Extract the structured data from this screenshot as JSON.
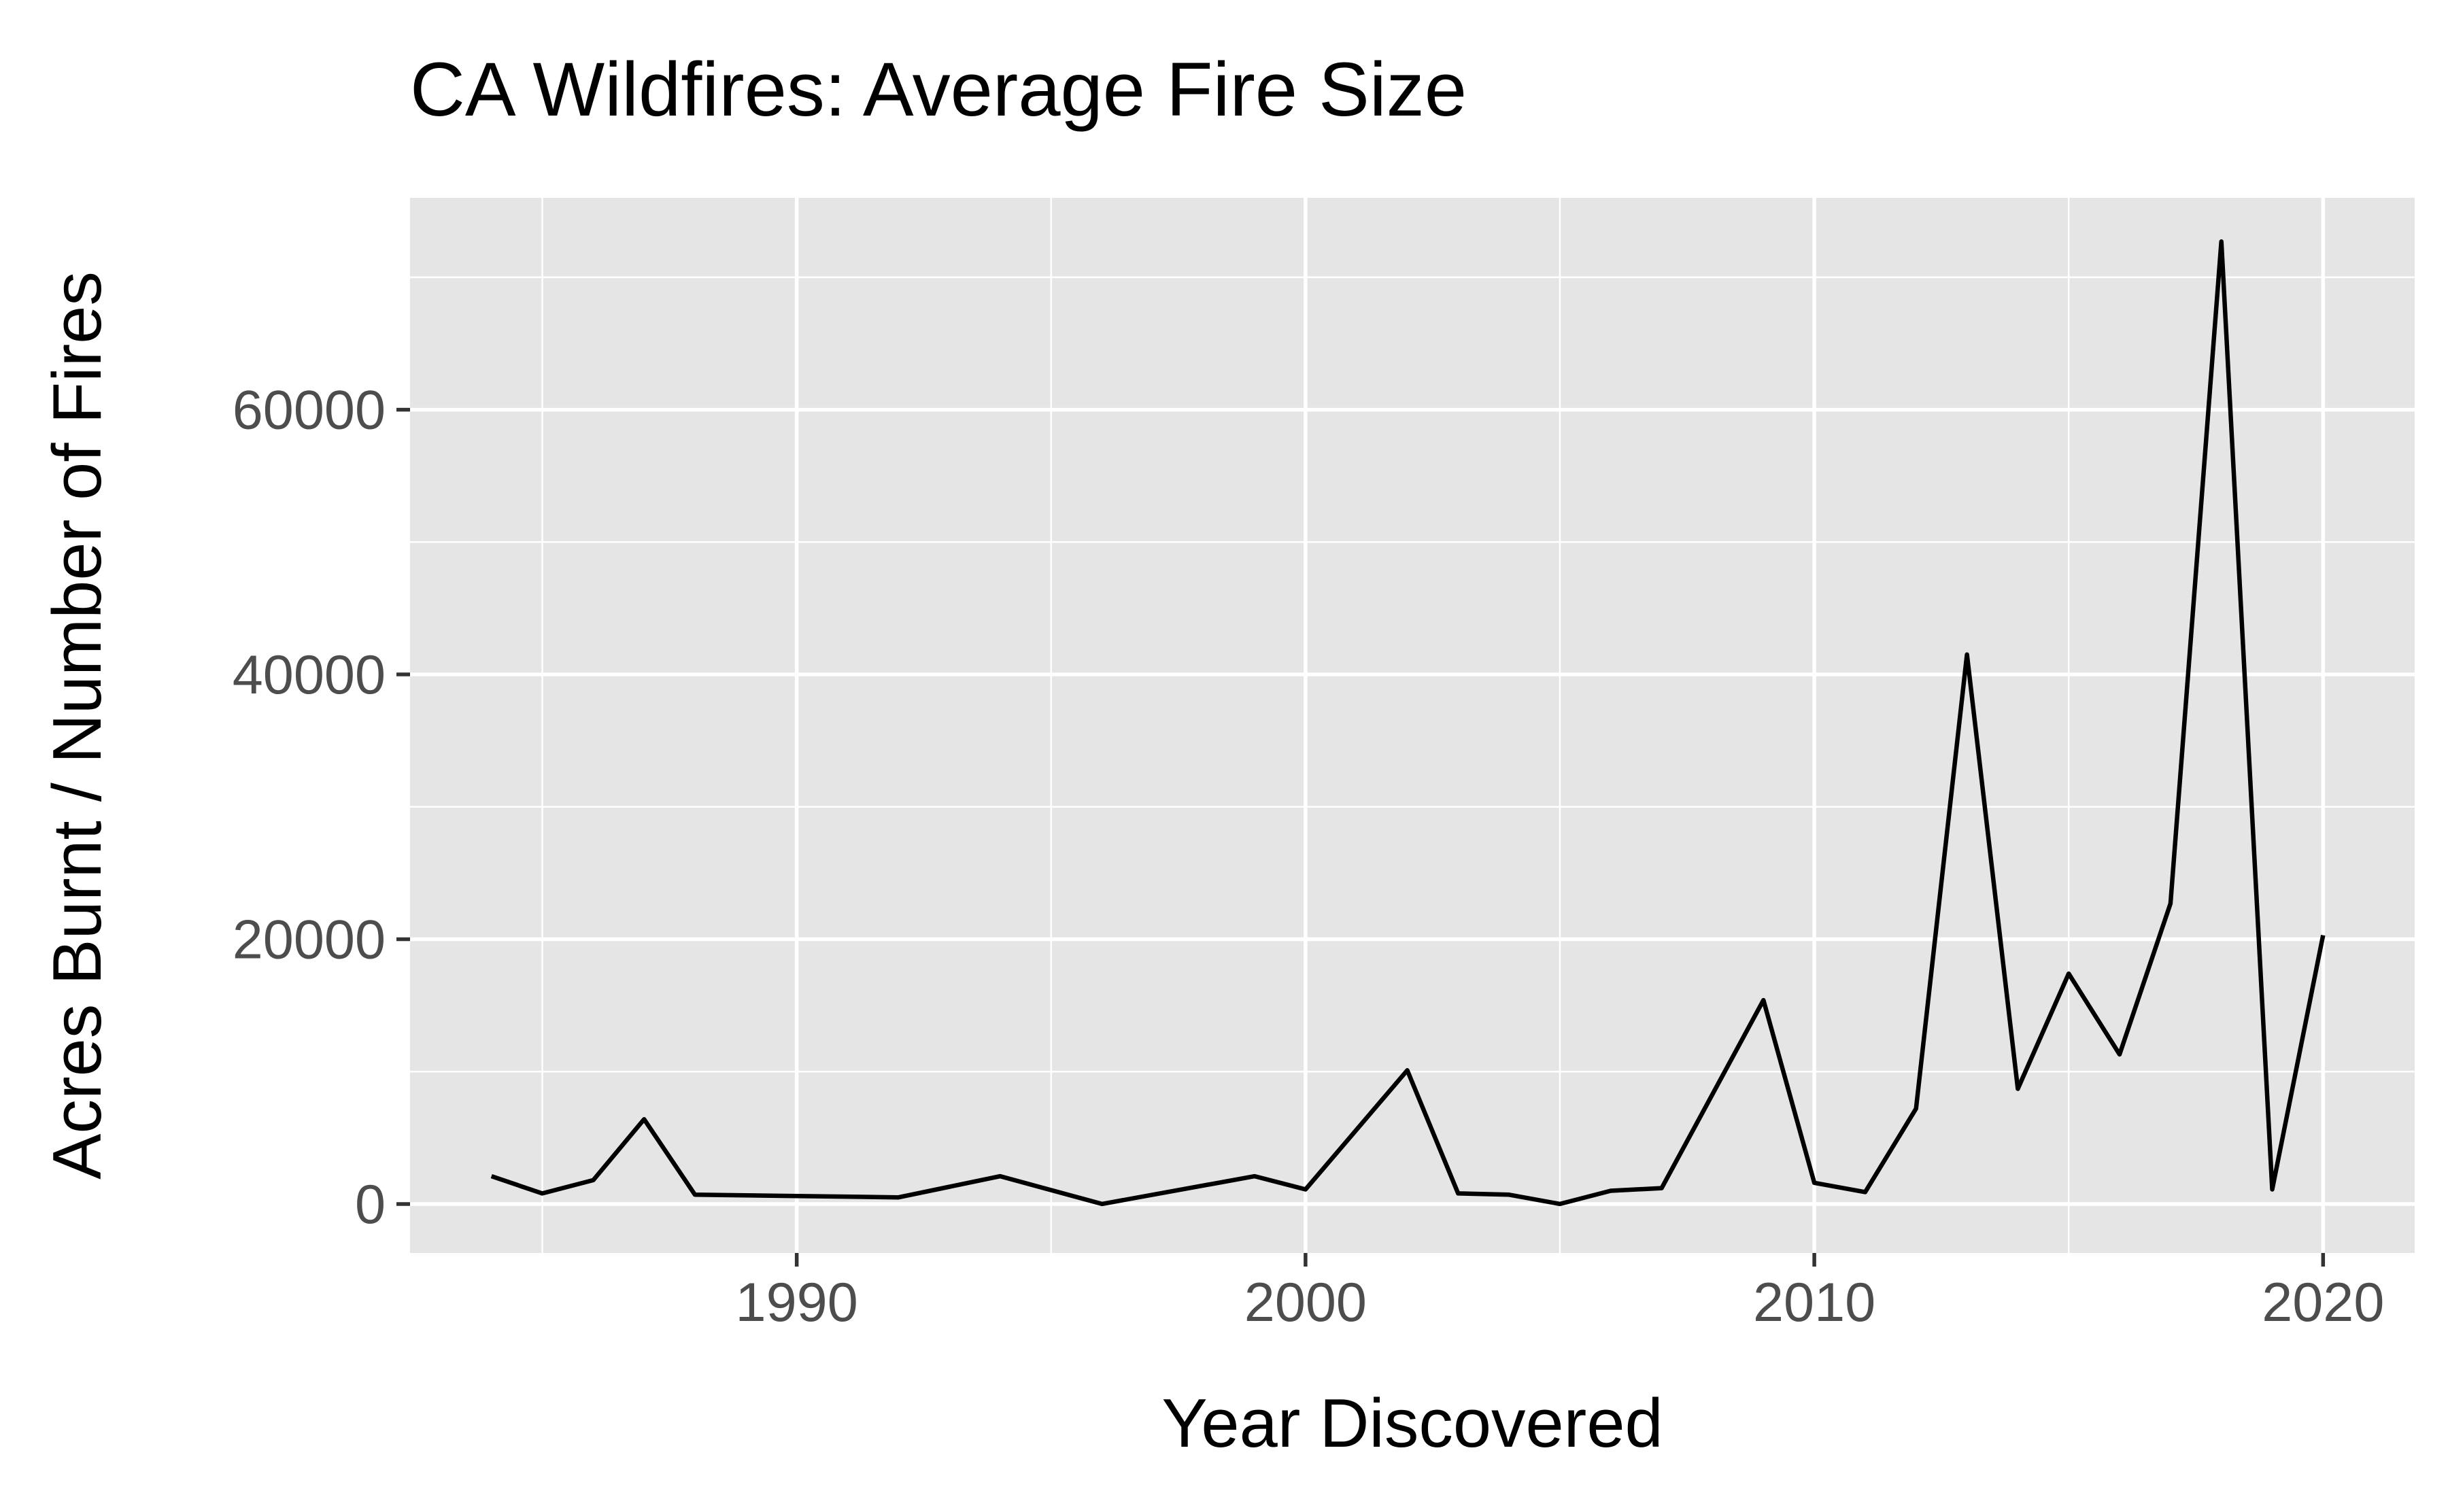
{
  "chart_data": {
    "type": "line",
    "title": "CA Wildfires: Average Fire Size",
    "xlabel": "Year Discovered",
    "ylabel": "Acres Burnt / Number of Fires",
    "xlim": [
      1982.4,
      2021.8
    ],
    "ylim": [
      -3700,
      76000
    ],
    "x_ticks": [
      1990,
      2000,
      2010,
      2020
    ],
    "x_minor_ticks": [
      1985,
      1995,
      2005,
      2015
    ],
    "y_ticks": [
      0,
      20000,
      40000,
      60000
    ],
    "y_minor_ticks": [
      10000,
      30000,
      50000,
      70000
    ],
    "grid": true,
    "background": "#e5e5e5",
    "line_color": "#000000",
    "series": [
      {
        "x": [
          1984,
          1985,
          1986,
          1987,
          1988,
          1992,
          1994,
          1996,
          1999,
          2000,
          2002,
          2003,
          2004,
          2005,
          2006,
          2007,
          2009,
          2010,
          2011,
          2012,
          2013,
          2014,
          2015,
          2016,
          2017,
          2018,
          2019,
          2020
        ],
        "y": [
          2100,
          800,
          1800,
          6400,
          700,
          500,
          2100,
          0,
          2100,
          1100,
          10100,
          800,
          700,
          0,
          1000,
          1200,
          15400,
          1600,
          900,
          7200,
          41500,
          8700,
          17400,
          11300,
          22700,
          72700,
          1100,
          20300
        ]
      }
    ]
  }
}
